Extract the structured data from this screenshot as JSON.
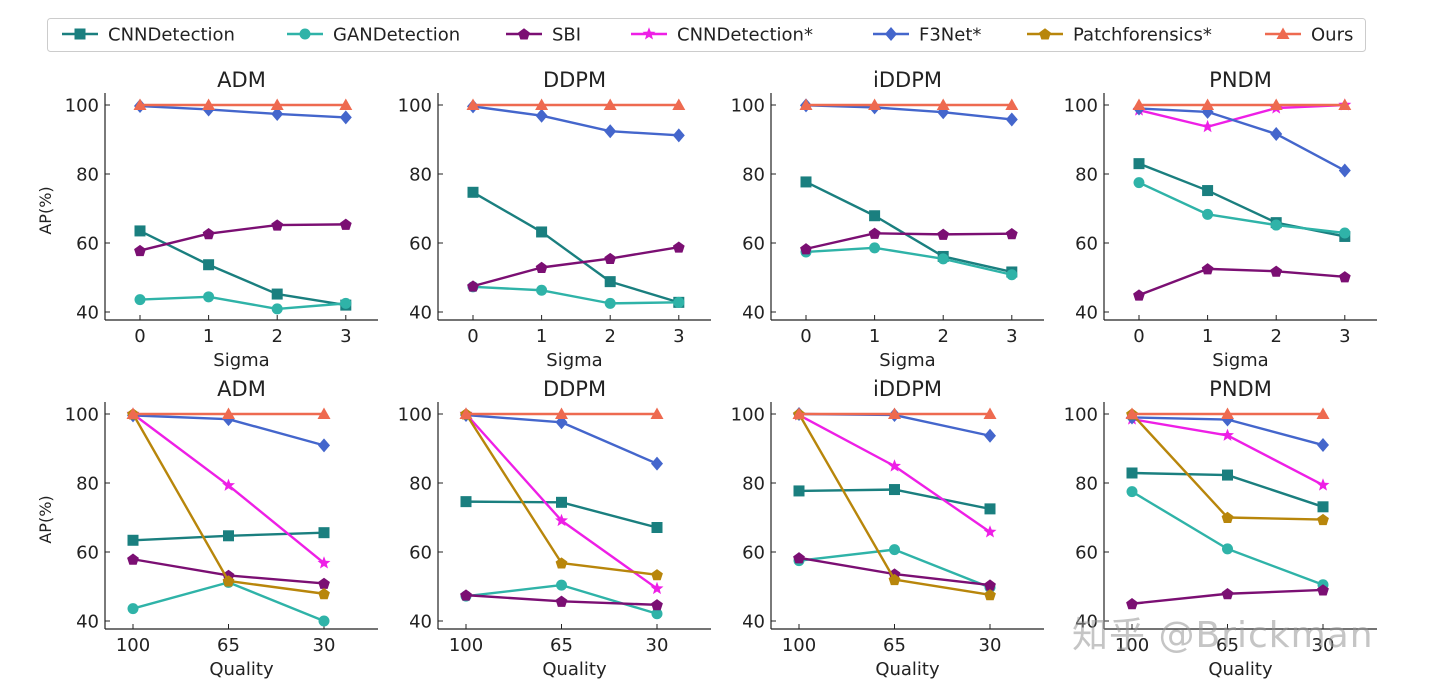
{
  "legend": [
    {
      "name": "CNNDetection",
      "color": "#1a7f7f",
      "marker": "square"
    },
    {
      "name": "GANDetection",
      "color": "#2fb3a8",
      "marker": "circle"
    },
    {
      "name": "SBI",
      "color": "#7b0f73",
      "marker": "pentagon"
    },
    {
      "name": "CNNDetection*",
      "color": "#ee1fe6",
      "marker": "star"
    },
    {
      "name": "F3Net*",
      "color": "#4466cc",
      "marker": "diamond"
    },
    {
      "name": "Patchforensics*",
      "color": "#b8860b",
      "marker": "pentagon"
    },
    {
      "name": "Ours",
      "color": "#ee6a50",
      "marker": "triangle"
    }
  ],
  "watermark": "知乎 @Brickman",
  "chart_data": [
    {
      "type": "line",
      "title": "ADM",
      "xlabel": "Sigma",
      "ylabel": "AP(%)",
      "categories": [
        "0",
        "1",
        "2",
        "3"
      ],
      "ylim": [
        40,
        100
      ],
      "yticks": [
        40,
        60,
        80,
        100
      ],
      "series": [
        {
          "name": "CNNDetection",
          "values": [
            63.5,
            53.7,
            45.2,
            42.0
          ]
        },
        {
          "name": "GANDetection",
          "values": [
            43.6,
            44.4,
            40.9,
            42.5
          ]
        },
        {
          "name": "SBI",
          "values": [
            57.8,
            62.7,
            65.2,
            65.4
          ]
        },
        {
          "name": "F3Net*",
          "values": [
            99.7,
            98.7,
            97.4,
            96.4
          ]
        },
        {
          "name": "Ours",
          "values": [
            100,
            100,
            100,
            100
          ]
        }
      ]
    },
    {
      "type": "line",
      "title": "DDPM",
      "xlabel": "Sigma",
      "ylabel": "",
      "categories": [
        "0",
        "1",
        "2",
        "3"
      ],
      "ylim": [
        40,
        100
      ],
      "yticks": [
        40,
        60,
        80,
        100
      ],
      "series": [
        {
          "name": "CNNDetection",
          "values": [
            74.7,
            63.2,
            48.8,
            42.8
          ]
        },
        {
          "name": "GANDetection",
          "values": [
            47.3,
            46.3,
            42.5,
            42.8
          ]
        },
        {
          "name": "SBI",
          "values": [
            47.5,
            52.9,
            55.5,
            58.8
          ]
        },
        {
          "name": "F3Net*",
          "values": [
            99.6,
            96.9,
            92.4,
            91.2
          ]
        },
        {
          "name": "Ours",
          "values": [
            100,
            100,
            100,
            100
          ]
        }
      ]
    },
    {
      "type": "line",
      "title": "iDDPM",
      "xlabel": "Sigma",
      "ylabel": "",
      "categories": [
        "0",
        "1",
        "2",
        "3"
      ],
      "ylim": [
        40,
        100
      ],
      "yticks": [
        40,
        60,
        80,
        100
      ],
      "series": [
        {
          "name": "CNNDetection",
          "values": [
            77.7,
            67.9,
            56.1,
            51.6
          ]
        },
        {
          "name": "GANDetection",
          "values": [
            57.4,
            58.6,
            55.4,
            50.8
          ]
        },
        {
          "name": "SBI",
          "values": [
            58.3,
            62.8,
            62.5,
            62.7
          ]
        },
        {
          "name": "F3Net*",
          "values": [
            99.9,
            99.3,
            97.9,
            95.8
          ]
        },
        {
          "name": "Ours",
          "values": [
            100,
            100,
            100,
            100
          ]
        }
      ]
    },
    {
      "type": "line",
      "title": "PNDM",
      "xlabel": "Sigma",
      "ylabel": "",
      "categories": [
        "0",
        "1",
        "2",
        "3"
      ],
      "ylim": [
        40,
        100
      ],
      "yticks": [
        40,
        60,
        80,
        100
      ],
      "series": [
        {
          "name": "CNNDetection",
          "values": [
            83.0,
            75.2,
            65.9,
            61.9
          ]
        },
        {
          "name": "GANDetection",
          "values": [
            77.5,
            68.3,
            65.2,
            62.9
          ]
        },
        {
          "name": "SBI",
          "values": [
            44.9,
            52.5,
            51.8,
            50.2
          ]
        },
        {
          "name": "CNNDetection*",
          "values": [
            98.5,
            93.7,
            99.1,
            100
          ]
        },
        {
          "name": "F3Net*",
          "values": [
            99.0,
            98.0,
            91.6,
            81.0
          ]
        },
        {
          "name": "Ours",
          "values": [
            100,
            100,
            100,
            100
          ]
        }
      ]
    },
    {
      "type": "line",
      "title": "ADM",
      "xlabel": "Quality",
      "ylabel": "AP(%)",
      "categories": [
        "100",
        "65",
        "30"
      ],
      "ylim": [
        40,
        100
      ],
      "yticks": [
        40,
        60,
        80,
        100
      ],
      "series": [
        {
          "name": "CNNDetection",
          "values": [
            63.4,
            64.7,
            65.6
          ]
        },
        {
          "name": "GANDetection",
          "values": [
            43.6,
            51.2,
            40.0
          ]
        },
        {
          "name": "SBI",
          "values": [
            57.9,
            53.2,
            50.9
          ]
        },
        {
          "name": "CNNDetection*",
          "values": [
            100,
            79.3,
            56.8
          ]
        },
        {
          "name": "F3Net*",
          "values": [
            99.6,
            98.5,
            90.9
          ]
        },
        {
          "name": "Patchforensics*",
          "values": [
            100,
            51.6,
            47.9
          ]
        },
        {
          "name": "Ours",
          "values": [
            100,
            100,
            100
          ]
        }
      ]
    },
    {
      "type": "line",
      "title": "DDPM",
      "xlabel": "Quality",
      "ylabel": "",
      "categories": [
        "100",
        "65",
        "30"
      ],
      "ylim": [
        40,
        100
      ],
      "yticks": [
        40,
        60,
        80,
        100
      ],
      "series": [
        {
          "name": "CNNDetection",
          "values": [
            74.6,
            74.4,
            67.1
          ]
        },
        {
          "name": "GANDetection",
          "values": [
            47.2,
            50.4,
            42.1
          ]
        },
        {
          "name": "SBI",
          "values": [
            47.5,
            45.7,
            44.7
          ]
        },
        {
          "name": "CNNDetection*",
          "values": [
            100,
            69.1,
            49.4
          ]
        },
        {
          "name": "F3Net*",
          "values": [
            99.7,
            97.6,
            85.6
          ]
        },
        {
          "name": "Patchforensics*",
          "values": [
            100,
            56.8,
            53.4
          ]
        },
        {
          "name": "Ours",
          "values": [
            100,
            100,
            100
          ]
        }
      ]
    },
    {
      "type": "line",
      "title": "iDDPM",
      "xlabel": "Quality",
      "ylabel": "",
      "categories": [
        "100",
        "65",
        "30"
      ],
      "ylim": [
        40,
        100
      ],
      "yticks": [
        40,
        60,
        80,
        100
      ],
      "series": [
        {
          "name": "CNNDetection",
          "values": [
            77.7,
            78.1,
            72.5
          ]
        },
        {
          "name": "GANDetection",
          "values": [
            57.5,
            60.7,
            49.7
          ]
        },
        {
          "name": "SBI",
          "values": [
            58.3,
            53.6,
            50.4
          ]
        },
        {
          "name": "CNNDetection*",
          "values": [
            99.7,
            84.9,
            65.8
          ]
        },
        {
          "name": "F3Net*",
          "values": [
            100,
            99.7,
            93.7
          ]
        },
        {
          "name": "Patchforensics*",
          "values": [
            100,
            52.0,
            47.6
          ]
        },
        {
          "name": "Ours",
          "values": [
            100,
            100,
            100
          ]
        }
      ]
    },
    {
      "type": "line",
      "title": "PNDM",
      "xlabel": "Quality",
      "ylabel": "",
      "categories": [
        "100",
        "65",
        "30"
      ],
      "ylim": [
        40,
        100
      ],
      "yticks": [
        40,
        60,
        80,
        100
      ],
      "series": [
        {
          "name": "CNNDetection",
          "values": [
            82.9,
            82.3,
            73.1
          ]
        },
        {
          "name": "GANDetection",
          "values": [
            77.5,
            60.9,
            50.5
          ]
        },
        {
          "name": "SBI",
          "values": [
            45.0,
            47.9,
            49.0
          ]
        },
        {
          "name": "CNNDetection*",
          "values": [
            98.5,
            93.8,
            79.4
          ]
        },
        {
          "name": "F3Net*",
          "values": [
            99.0,
            98.4,
            91.0
          ]
        },
        {
          "name": "Patchforensics*",
          "values": [
            100,
            70.0,
            69.4
          ]
        },
        {
          "name": "Ours",
          "values": [
            100,
            100,
            100
          ]
        }
      ]
    }
  ]
}
